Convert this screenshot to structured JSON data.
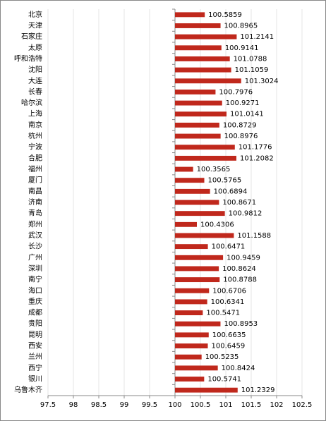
{
  "chart_data": {
    "type": "hbar",
    "categories": [
      "北京",
      "天津",
      "石家庄",
      "太原",
      "呼和浩特",
      "沈阳",
      "大连",
      "长春",
      "哈尔滨",
      "上海",
      "南京",
      "杭州",
      "宁波",
      "合肥",
      "福州",
      "厦门",
      "南昌",
      "济南",
      "青岛",
      "郑州",
      "武汉",
      "长沙",
      "广州",
      "深圳",
      "南宁",
      "海口",
      "重庆",
      "成都",
      "贵阳",
      "昆明",
      "西安",
      "兰州",
      "西宁",
      "银川",
      "乌鲁木齐"
    ],
    "values": [
      100.5859,
      100.8965,
      101.2141,
      100.9141,
      101.0788,
      101.1059,
      101.3024,
      100.7976,
      100.9271,
      101.0141,
      100.8729,
      100.8976,
      101.1776,
      101.2082,
      100.3565,
      100.5765,
      100.6894,
      100.8671,
      100.9812,
      100.4306,
      101.1588,
      100.6471,
      100.9459,
      100.8624,
      100.8788,
      100.6706,
      100.6341,
      100.5471,
      100.8953,
      100.6635,
      100.6459,
      100.5235,
      100.8424,
      100.5741,
      101.2329
    ],
    "color": "#c0281c",
    "xlim": [
      97.5,
      102.5
    ],
    "xticks": [
      97.5,
      98,
      98.5,
      99,
      99.5,
      100,
      100.5,
      101,
      101.5,
      102,
      102.5
    ],
    "axis_crossing": 100,
    "grid": true
  }
}
